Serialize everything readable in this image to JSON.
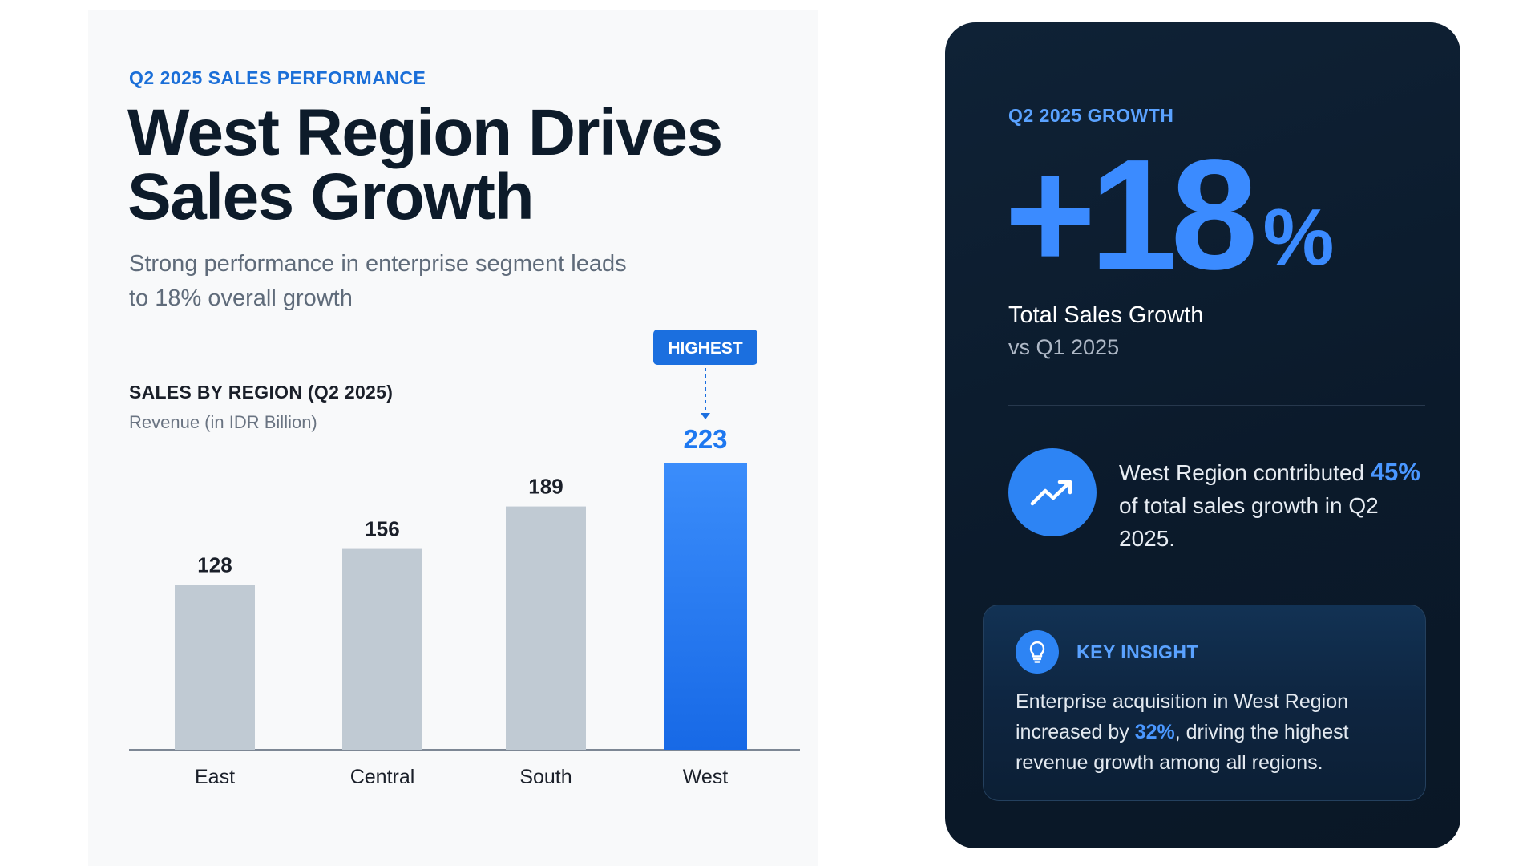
{
  "header": {
    "eyebrow": "Q2 2025 SALES PERFORMANCE",
    "title": "West Region Drives Sales Growth",
    "subtitle": "Strong performance in enterprise segment leads to 18% overall growth"
  },
  "chart_data": {
    "type": "bar",
    "title": "SALES BY REGION (Q2 2025)",
    "subtitle": "Revenue (in IDR Billion)",
    "categories": [
      "East",
      "Central",
      "South",
      "West"
    ],
    "values": [
      128,
      156,
      189,
      223
    ],
    "ylim": [
      0,
      223
    ],
    "grid": false,
    "highlight": {
      "category": "West",
      "label": "HIGHEST"
    },
    "colors": {
      "default": "#c0cad3",
      "highlight": "#1e78f0",
      "label_default": "#1a1f29",
      "label_highlight": "#1e78f0"
    }
  },
  "growth_card": {
    "label": "Q2 2025 GROWTH",
    "value": "+18",
    "unit": "%",
    "caption": "Total Sales Growth",
    "comparison": "vs Q1 2025",
    "contribution": {
      "icon": "trend-up-icon",
      "before": "West Region contributed",
      "highlight": "45%",
      "after": "of total sales growth in Q2 2025."
    },
    "insight": {
      "icon": "lightbulb-icon",
      "title": "KEY INSIGHT",
      "before": "Enterprise acquisition in West Region increased by",
      "highlight": "32%",
      "after": ", driving the highest revenue growth among all regions."
    }
  }
}
